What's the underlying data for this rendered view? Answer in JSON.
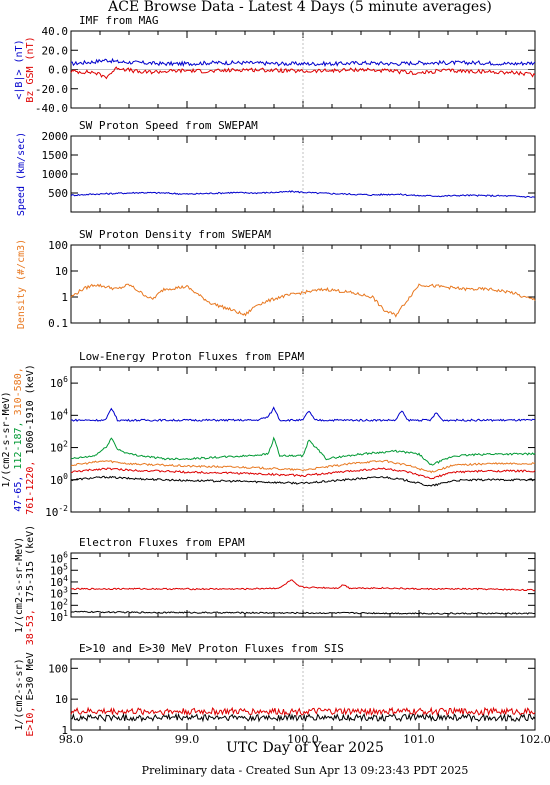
{
  "title": "ACE Browse Data - Latest 4 Days (5 minute averages)",
  "footer": "Preliminary data - Created Sun Apr 13 09:23:43 PDT 2025",
  "chart_data": [
    {
      "type": "line",
      "title": "IMF from MAG",
      "ylim": [
        -40,
        40
      ],
      "yscale": "linear",
      "yticks": [
        "40.0",
        "20.0",
        "0.0",
        "-20.0",
        "-40.0"
      ],
      "ylabel_parts": [
        {
          "text": "<|B|> (nT)",
          "color": "#0000cc"
        },
        {
          "text": "Bz GSM (nT)",
          "color": "#dd0000"
        }
      ],
      "series": [
        {
          "color": "#0000cc",
          "x": [
            98.0,
            98.2,
            98.3,
            98.4,
            98.6,
            98.8,
            99.0,
            99.2,
            99.5,
            99.8,
            100.0,
            100.3,
            100.5,
            100.8,
            101.0,
            101.2,
            101.5,
            101.8,
            102.0
          ],
          "y": [
            6,
            8,
            10,
            8,
            7,
            6,
            6,
            7,
            7,
            6,
            6,
            6,
            7,
            6,
            7,
            7,
            7,
            6,
            7
          ]
        },
        {
          "color": "#dd0000",
          "x": [
            98.0,
            98.2,
            98.3,
            98.4,
            98.6,
            98.8,
            99.0,
            99.2,
            99.5,
            99.8,
            100.0,
            100.3,
            100.5,
            100.8,
            101.0,
            101.2,
            101.5,
            101.8,
            102.0
          ],
          "y": [
            -2,
            -3,
            -8,
            2,
            -3,
            -2,
            -1,
            -2,
            0,
            -1,
            -2,
            -1,
            0,
            -2,
            -4,
            -1,
            -2,
            -3,
            -6
          ]
        }
      ]
    },
    {
      "type": "line",
      "title": "SW Proton Speed from SWEPAM",
      "ylim": [
        0,
        2000
      ],
      "yscale": "linear",
      "yticks": [
        "2000",
        "1500",
        "1000",
        "500"
      ],
      "ylabel_parts": [
        {
          "text": "Speed (km/sec)",
          "color": "#0000cc"
        }
      ],
      "series": [
        {
          "color": "#0000cc",
          "x": [
            98.0,
            98.2,
            98.4,
            98.6,
            98.8,
            99.0,
            99.2,
            99.4,
            99.6,
            99.8,
            99.9,
            100.1,
            100.4,
            100.6,
            100.8,
            101.0,
            101.2,
            101.4,
            101.6,
            101.8,
            102.0
          ],
          "y": [
            440,
            470,
            490,
            510,
            500,
            470,
            490,
            510,
            500,
            520,
            540,
            500,
            470,
            450,
            470,
            430,
            420,
            440,
            430,
            420,
            390
          ]
        }
      ]
    },
    {
      "type": "line",
      "title": "SW Proton Density from SWEPAM",
      "ylim": [
        0.1,
        100
      ],
      "yscale": "log",
      "yticks": [
        "100",
        "10",
        "1",
        "0.1"
      ],
      "ylabel_parts": [
        {
          "text": "Density (#/cm3)",
          "color": "#e87820"
        }
      ],
      "series": [
        {
          "color": "#e87820",
          "x": [
            98.0,
            98.1,
            98.2,
            98.3,
            98.4,
            98.5,
            98.6,
            98.7,
            98.8,
            99.0,
            99.1,
            99.2,
            99.4,
            99.5,
            99.6,
            99.8,
            100.0,
            100.2,
            100.4,
            100.6,
            100.7,
            100.8,
            101.0,
            101.2,
            101.4,
            101.6,
            101.8,
            101.9,
            102.0
          ],
          "y": [
            1.0,
            2.0,
            3.0,
            2.5,
            2.0,
            3.0,
            1.5,
            0.8,
            2.0,
            2.5,
            1.2,
            0.6,
            0.3,
            0.2,
            0.5,
            1.0,
            1.5,
            2.0,
            1.5,
            1.0,
            0.3,
            0.2,
            3.0,
            2.5,
            2.0,
            2.0,
            1.5,
            1.0,
            0.8
          ]
        }
      ]
    },
    {
      "type": "line",
      "title": "Low-Energy Proton Fluxes from EPAM",
      "ylim": [
        0.01,
        10000000
      ],
      "yscale": "log",
      "yticks": [
        "10^6",
        "10^4",
        "10^2",
        "10^0",
        "10^-2"
      ],
      "ylabel_parts": [
        {
          "text": "1/(cm2-s-sr-MeV)",
          "color": "#000000"
        },
        {
          "text": "47-65,",
          "color": "#0000cc"
        },
        {
          "text": "112-187,",
          "color": "#009933"
        },
        {
          "text": "310-580,",
          "color": "#e87820"
        },
        {
          "text": "761-1220,",
          "color": "#dd0000"
        },
        {
          "text": "1060-1910 (keV)",
          "color": "#000000"
        }
      ],
      "series": [
        {
          "color": "#0000cc",
          "x": [
            98.0,
            98.3,
            98.35,
            98.4,
            99.0,
            99.6,
            99.7,
            99.75,
            99.8,
            100.0,
            100.05,
            100.1,
            100.8,
            100.85,
            100.9,
            101.1,
            101.15,
            101.2,
            102.0
          ],
          "y": [
            5000,
            5000,
            30000,
            5000,
            5000,
            5000,
            8000,
            30000,
            5000,
            5000,
            20000,
            5000,
            5000,
            20000,
            5000,
            5000,
            15000,
            5000,
            5000
          ]
        },
        {
          "color": "#009933",
          "x": [
            98.0,
            98.2,
            98.3,
            98.35,
            98.4,
            98.5,
            98.8,
            99.0,
            99.5,
            99.7,
            99.75,
            99.8,
            100.0,
            100.05,
            100.2,
            100.5,
            100.8,
            101.0,
            101.1,
            101.3,
            101.6,
            102.0
          ],
          "y": [
            20,
            30,
            100,
            400,
            80,
            40,
            20,
            20,
            30,
            40,
            400,
            30,
            30,
            300,
            20,
            40,
            60,
            40,
            8,
            30,
            40,
            40
          ]
        },
        {
          "color": "#e87820",
          "x": [
            98.0,
            98.3,
            98.5,
            99.0,
            99.5,
            100.0,
            100.5,
            100.7,
            100.9,
            101.1,
            101.3,
            101.6,
            102.0
          ],
          "y": [
            8,
            15,
            10,
            7,
            6,
            4,
            12,
            15,
            8,
            3,
            8,
            10,
            10
          ]
        },
        {
          "color": "#dd0000",
          "x": [
            98.0,
            98.3,
            98.5,
            99.0,
            99.5,
            100.0,
            100.5,
            100.7,
            100.9,
            101.1,
            101.3,
            101.6,
            102.0
          ],
          "y": [
            3,
            5,
            4,
            3,
            2.5,
            1.8,
            4,
            5,
            3,
            1.2,
            3,
            3.5,
            3.5
          ]
        },
        {
          "color": "#000000",
          "x": [
            98.0,
            98.3,
            98.5,
            99.0,
            99.5,
            100.0,
            100.5,
            100.7,
            100.9,
            101.1,
            101.3,
            101.6,
            102.0
          ],
          "y": [
            1.0,
            1.5,
            1.2,
            0.9,
            0.8,
            0.6,
            1.2,
            1.5,
            0.9,
            0.4,
            0.9,
            1.0,
            1.0
          ]
        }
      ]
    },
    {
      "type": "line",
      "title": "Electron Fluxes from EPAM",
      "ylim": [
        10,
        3000000
      ],
      "yscale": "log",
      "yticks": [
        "10^6",
        "10^5",
        "10^4",
        "10^3",
        "10^2",
        "10^1"
      ],
      "ylabel_parts": [
        {
          "text": "1/(cm2-s-sr-MeV)",
          "color": "#000000"
        },
        {
          "text": "38-53,",
          "color": "#dd0000"
        },
        {
          "text": "175-315 (keV)",
          "color": "#000000"
        }
      ],
      "series": [
        {
          "color": "#dd0000",
          "x": [
            98.0,
            98.5,
            99.0,
            99.5,
            99.8,
            99.9,
            99.95,
            100.0,
            100.3,
            100.35,
            100.4,
            100.7,
            101.0,
            101.5,
            102.0
          ],
          "y": [
            2500,
            2600,
            2500,
            2500,
            3000,
            15000,
            5000,
            3500,
            3000,
            6000,
            3000,
            3000,
            2500,
            2500,
            2000
          ]
        },
        {
          "color": "#000000",
          "x": [
            98.0,
            98.5,
            99.0,
            99.5,
            100.0,
            100.5,
            101.0,
            101.5,
            102.0
          ],
          "y": [
            28,
            25,
            24,
            23,
            22,
            22,
            20,
            20,
            20
          ]
        }
      ]
    },
    {
      "type": "line",
      "title": "E>10 and E>30 MeV Proton Fluxes from SIS",
      "ylim": [
        1,
        200
      ],
      "yscale": "log",
      "yticks": [
        "100",
        "10",
        "1"
      ],
      "ylabel_parts": [
        {
          "text": "1/(cm2-s-sr)",
          "color": "#000000"
        },
        {
          "text": "E>10,",
          "color": "#dd0000"
        },
        {
          "text": "E>30 MeV",
          "color": "#000000"
        }
      ],
      "series": [
        {
          "color": "#dd0000",
          "x": [
            98.0,
            102.0
          ],
          "y": [
            4.0,
            4.0
          ]
        },
        {
          "color": "#000000",
          "x": [
            98.0,
            102.0
          ],
          "y": [
            2.5,
            2.5
          ]
        }
      ]
    }
  ],
  "xaxis": {
    "label": "UTC Day of Year 2025",
    "range": [
      98.0,
      102.0
    ],
    "ticks": [
      "98.0",
      "99.0",
      "100.0",
      "101.0",
      "102.0"
    ]
  }
}
